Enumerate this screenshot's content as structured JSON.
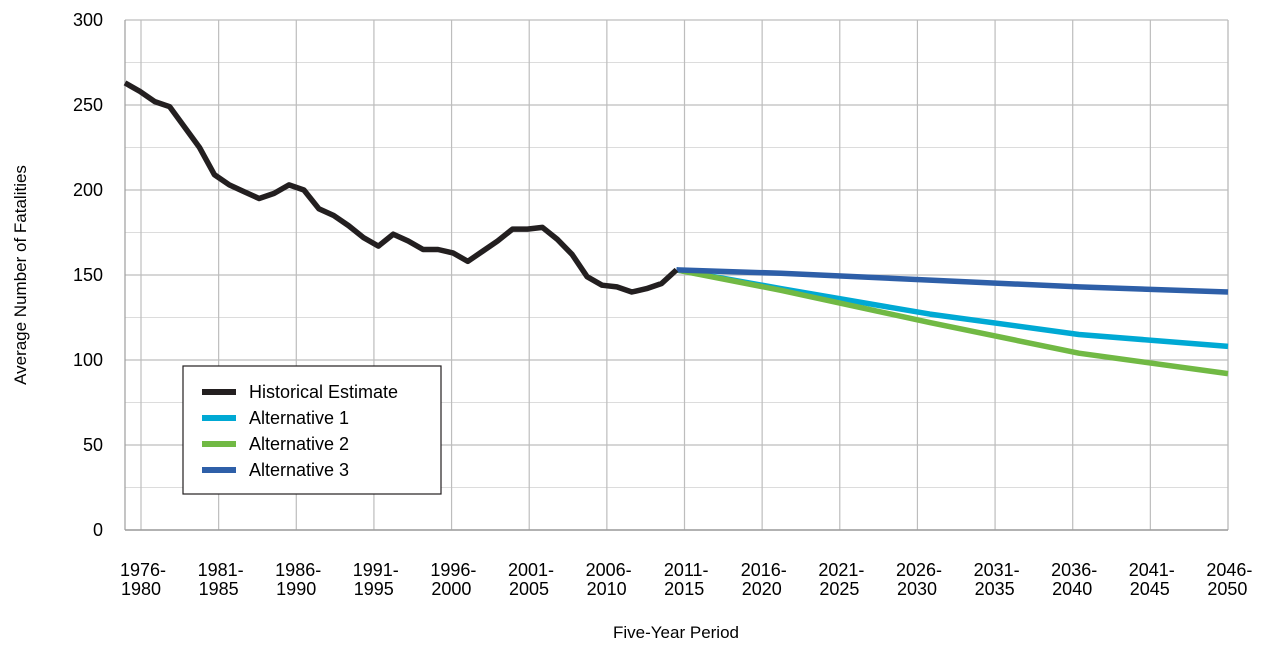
{
  "chart_data": {
    "type": "line",
    "title": "",
    "xlabel": "Five-Year Period",
    "ylabel": "Average Number of Fatalities",
    "ylim": [
      0,
      300
    ],
    "yticks": [
      "0",
      "50",
      "100",
      "150",
      "200",
      "250",
      "300"
    ],
    "grid": true,
    "legend_position": "bottom-left",
    "categories": [
      [
        "1976-",
        "1980"
      ],
      [
        "1981-",
        "1985"
      ],
      [
        "1986-",
        "1990"
      ],
      [
        "1991-",
        "1995"
      ],
      [
        "1996-",
        "2000"
      ],
      [
        "2001-",
        "2005"
      ],
      [
        "2006-",
        "2010"
      ],
      [
        "2011-",
        "2015"
      ],
      [
        "2016-",
        "2020"
      ],
      [
        "2021-",
        "2025"
      ],
      [
        "2026-",
        "2030"
      ],
      [
        "2031-",
        "2035"
      ],
      [
        "2036-",
        "2040"
      ],
      [
        "2041-",
        "2045"
      ],
      [
        "2046-",
        "2050"
      ]
    ],
    "series": [
      {
        "name": "Historical Estimate",
        "color": "#231f20",
        "points": [
          [
            1976,
            263
          ],
          [
            1977,
            258
          ],
          [
            1978,
            252
          ],
          [
            1979,
            249
          ],
          [
            1980,
            237
          ],
          [
            1981,
            225
          ],
          [
            1982,
            209
          ],
          [
            1983,
            203
          ],
          [
            1984,
            199
          ],
          [
            1985,
            195
          ],
          [
            1986,
            198
          ],
          [
            1987,
            203
          ],
          [
            1988,
            200
          ],
          [
            1989,
            189
          ],
          [
            1990,
            185
          ],
          [
            1991,
            179
          ],
          [
            1992,
            172
          ],
          [
            1993,
            167
          ],
          [
            1994,
            174
          ],
          [
            1995,
            170
          ],
          [
            1996,
            165
          ],
          [
            1997,
            165
          ],
          [
            1998,
            163
          ],
          [
            1999,
            158
          ],
          [
            2000,
            164
          ],
          [
            2001,
            170
          ],
          [
            2002,
            177
          ],
          [
            2003,
            177
          ],
          [
            2004,
            178
          ],
          [
            2005,
            171
          ],
          [
            2006,
            162
          ],
          [
            2007,
            149
          ],
          [
            2008,
            144
          ],
          [
            2009,
            143
          ],
          [
            2010,
            140
          ],
          [
            2011,
            142
          ],
          [
            2012,
            145
          ],
          [
            2013,
            153
          ]
        ]
      },
      {
        "name": "Alternative 1",
        "color": "#00a9d4",
        "points": [
          [
            2013,
            153
          ],
          [
            2020,
            142
          ],
          [
            2030,
            127
          ],
          [
            2040,
            115
          ],
          [
            2050,
            108
          ]
        ]
      },
      {
        "name": "Alternative 2",
        "color": "#71b944",
        "points": [
          [
            2013,
            153
          ],
          [
            2020,
            141
          ],
          [
            2030,
            122
          ],
          [
            2040,
            104
          ],
          [
            2050,
            92
          ]
        ]
      },
      {
        "name": "Alternative 3",
        "color": "#2e5fa8",
        "points": [
          [
            2013,
            153
          ],
          [
            2020,
            151
          ],
          [
            2030,
            147
          ],
          [
            2040,
            143
          ],
          [
            2050,
            140
          ]
        ]
      }
    ]
  }
}
